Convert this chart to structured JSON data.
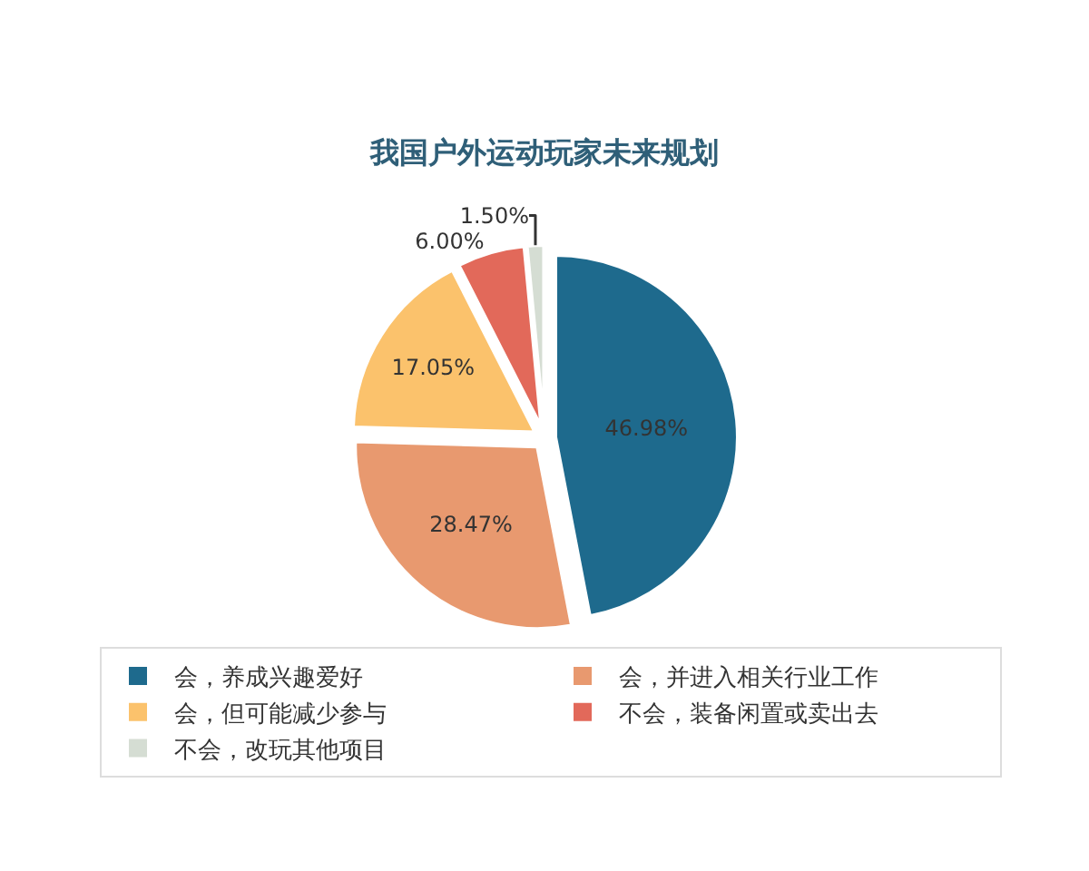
{
  "chart_data": {
    "type": "pie",
    "title": "我国户外运动玩家未来规划",
    "categories": [
      "会，养成兴趣爱好",
      "会，并进入相关行业工作",
      "会，但可能减少参与",
      "不会，装备闲置或卖出去",
      "不会，改玩其他项目"
    ],
    "values": [
      46.98,
      28.47,
      17.05,
      6.0,
      1.5
    ],
    "colors": [
      "#1e6a8d",
      "#e8996f",
      "#fbc26c",
      "#e2695a",
      "#d5ddd3"
    ],
    "value_labels": [
      "46.98%",
      "28.47%",
      "17.05%",
      "6.00%",
      "1.50%"
    ],
    "legend": "bottom"
  }
}
